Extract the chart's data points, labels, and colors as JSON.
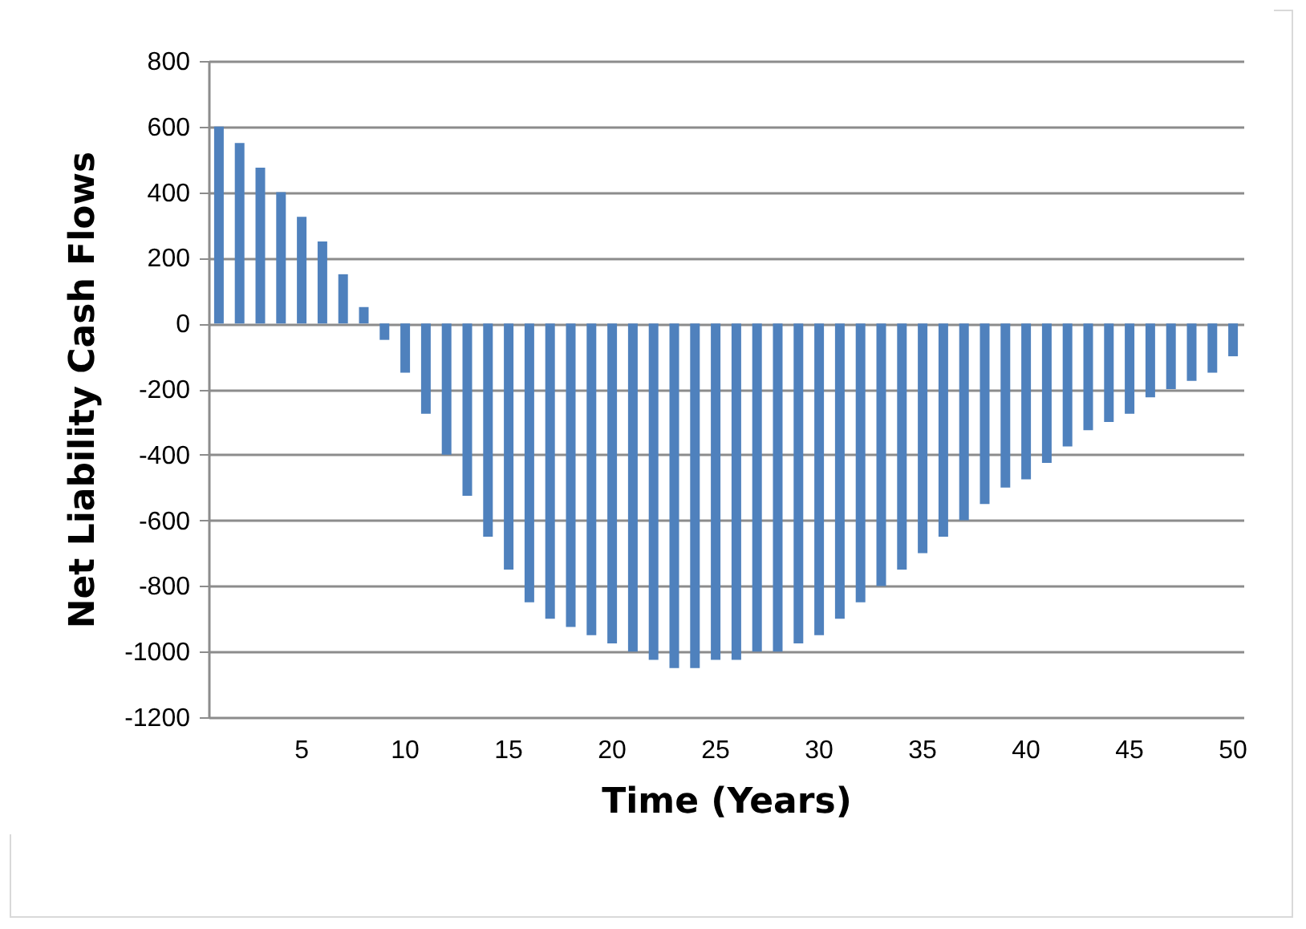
{
  "chart_data": {
    "type": "bar",
    "xlabel": "Time (Years)",
    "ylabel": "Net Liability Cash Flows",
    "categories": [
      null,
      null,
      null,
      null,
      "5",
      null,
      null,
      null,
      null,
      "10",
      null,
      null,
      null,
      null,
      "15",
      null,
      null,
      null,
      null,
      "20",
      null,
      null,
      null,
      null,
      "25",
      null,
      null,
      null,
      null,
      "30",
      null,
      null,
      null,
      null,
      "35",
      null,
      null,
      null,
      null,
      "40",
      null,
      null,
      null,
      null,
      "45",
      null,
      null,
      null,
      null,
      "50"
    ],
    "values": [
      600,
      550,
      475,
      400,
      325,
      250,
      150,
      50,
      -50,
      -150,
      -275,
      -400,
      -525,
      -650,
      -750,
      -850,
      -900,
      -925,
      -950,
      -975,
      -1000,
      -1025,
      -1050,
      -1050,
      -1025,
      -1025,
      -1000,
      -1000,
      -975,
      -950,
      -900,
      -850,
      -800,
      -750,
      -700,
      -650,
      -600,
      -550,
      -500,
      -475,
      -425,
      -375,
      -325,
      -300,
      -275,
      -225,
      -200,
      -175,
      -150,
      -100
    ],
    "color": "#4f81bd",
    "ylim": [
      -1200,
      800
    ],
    "yticks": [
      -1200,
      -1000,
      -800,
      -600,
      -400,
      -200,
      0,
      200,
      400,
      600,
      800
    ],
    "grid": "y"
  }
}
